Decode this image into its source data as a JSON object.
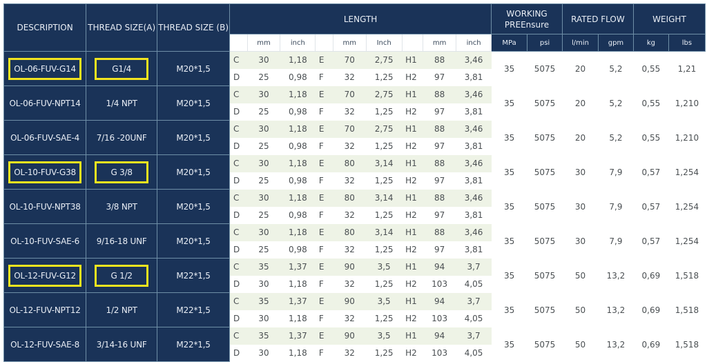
{
  "headers": {
    "description": "DESCRIPTION",
    "thread_a": "THREAD SIZE(A)",
    "thread_b": "THREAD SIZE (B)",
    "length": "LENGTH",
    "working_line1": "WORKING",
    "working_line2": "PREEnsure",
    "rated_flow": "RATED FLOW",
    "weight": "WEIGHT"
  },
  "units": {
    "u_mm1": "mm",
    "u_inch1": "inch",
    "u_mm2": "mm",
    "u_inch2": "Inch",
    "u_mm3": "mm",
    "u_inch3": "inch",
    "u_mpa": "MPa",
    "u_psi": "psi",
    "u_lmin": "l/min",
    "u_gpm": "gpm",
    "u_kg": "kg",
    "u_lbs": "lbs"
  },
  "rows": [
    {
      "description": "OL-06-FUV-G14",
      "thread_a": "G1/4",
      "thread_b": "M20*1,5",
      "highlight": true,
      "c_mm": "30",
      "c_inch": "1,18",
      "e_mm": "70",
      "e_inch": "2,75",
      "h1_mm": "88",
      "h1_inch": "3,46",
      "d_mm": "25",
      "d_inch": "0,98",
      "f_mm": "32",
      "f_inch": "1,25",
      "h2_mm": "97",
      "h2_inch": "3,81",
      "mpa": "35",
      "psi": "5075",
      "lmin": "20",
      "gpm": "5,2",
      "kg": "0,55",
      "lbs": "1,21"
    },
    {
      "description": "OL-06-FUV-NPT14",
      "thread_a": "1/4 NPT",
      "thread_b": "M20*1,5",
      "highlight": false,
      "c_mm": "30",
      "c_inch": "1,18",
      "e_mm": "70",
      "e_inch": "2,75",
      "h1_mm": "88",
      "h1_inch": "3,46",
      "d_mm": "25",
      "d_inch": "0,98",
      "f_mm": "32",
      "f_inch": "1,25",
      "h2_mm": "97",
      "h2_inch": "3,81",
      "mpa": "35",
      "psi": "5075",
      "lmin": "20",
      "gpm": "5,2",
      "kg": "0,55",
      "lbs": "1,210"
    },
    {
      "description": "OL-06-FUV-SAE-4",
      "thread_a": "7/16 -20UNF",
      "thread_b": "M20*1,5",
      "highlight": false,
      "c_mm": "30",
      "c_inch": "1,18",
      "e_mm": "70",
      "e_inch": "2,75",
      "h1_mm": "88",
      "h1_inch": "3,46",
      "d_mm": "25",
      "d_inch": "0,98",
      "f_mm": "32",
      "f_inch": "1,25",
      "h2_mm": "97",
      "h2_inch": "3,81",
      "mpa": "35",
      "psi": "5075",
      "lmin": "20",
      "gpm": "5,2",
      "kg": "0,55",
      "lbs": "1,210"
    },
    {
      "description": "OL-10-FUV-G38",
      "thread_a": "G 3/8",
      "thread_b": "M20*1,5",
      "highlight": true,
      "c_mm": "30",
      "c_inch": "1,18",
      "e_mm": "80",
      "e_inch": "3,14",
      "h1_mm": "88",
      "h1_inch": "3,46",
      "d_mm": "25",
      "d_inch": "0,98",
      "f_mm": "32",
      "f_inch": "1,25",
      "h2_mm": "97",
      "h2_inch": "3,81",
      "mpa": "35",
      "psi": "5075",
      "lmin": "30",
      "gpm": "7,9",
      "kg": "0,57",
      "lbs": "1,254"
    },
    {
      "description": "OL-10-FUV-NPT38",
      "thread_a": "3/8 NPT",
      "thread_b": "M20*1,5",
      "highlight": false,
      "c_mm": "30",
      "c_inch": "1,18",
      "e_mm": "80",
      "e_inch": "3,14",
      "h1_mm": "88",
      "h1_inch": "3,46",
      "d_mm": "25",
      "d_inch": "0,98",
      "f_mm": "32",
      "f_inch": "1,25",
      "h2_mm": "97",
      "h2_inch": "3,81",
      "mpa": "35",
      "psi": "5075",
      "lmin": "30",
      "gpm": "7,9",
      "kg": "0,57",
      "lbs": "1,254"
    },
    {
      "description": "OL-10-FUV-SAE-6",
      "thread_a": "9/16-18 UNF",
      "thread_b": "M20*1,5",
      "highlight": false,
      "c_mm": "30",
      "c_inch": "1,18",
      "e_mm": "80",
      "e_inch": "3,14",
      "h1_mm": "88",
      "h1_inch": "3,46",
      "d_mm": "25",
      "d_inch": "0,98",
      "f_mm": "32",
      "f_inch": "1,25",
      "h2_mm": "97",
      "h2_inch": "3,81",
      "mpa": "35",
      "psi": "5075",
      "lmin": "30",
      "gpm": "7,9",
      "kg": "0,57",
      "lbs": "1,254"
    },
    {
      "description": "OL-12-FUV-G12",
      "thread_a": "G 1/2",
      "thread_b": "M22*1,5",
      "highlight": true,
      "c_mm": "35",
      "c_inch": "1,37",
      "e_mm": "90",
      "e_inch": "3,5",
      "h1_mm": "94",
      "h1_inch": "3,7",
      "d_mm": "30",
      "d_inch": "1,18",
      "f_mm": "32",
      "f_inch": "1,25",
      "h2_mm": "103",
      "h2_inch": "4,05",
      "mpa": "35",
      "psi": "5075",
      "lmin": "50",
      "gpm": "13,2",
      "kg": "0,69",
      "lbs": "1,518"
    },
    {
      "description": "OL-12-FUV-NPT12",
      "thread_a": "1/2 NPT",
      "thread_b": "M22*1,5",
      "highlight": false,
      "c_mm": "35",
      "c_inch": "1,37",
      "e_mm": "90",
      "e_inch": "3,5",
      "h1_mm": "94",
      "h1_inch": "3,7",
      "d_mm": "30",
      "d_inch": "1,18",
      "f_mm": "32",
      "f_inch": "1,25",
      "h2_mm": "103",
      "h2_inch": "4,05",
      "mpa": "35",
      "psi": "5075",
      "lmin": "50",
      "gpm": "13,2",
      "kg": "0,69",
      "lbs": "1,518"
    },
    {
      "description": "OL-12-FUV-SAE-8",
      "thread_a": "3/14-16 UNF",
      "thread_b": "M22*1,5",
      "highlight": false,
      "c_mm": "35",
      "c_inch": "1,37",
      "e_mm": "90",
      "e_inch": "3,5",
      "h1_mm": "94",
      "h1_inch": "3,7",
      "d_mm": "30",
      "d_inch": "1,18",
      "f_mm": "32",
      "f_inch": "1,25",
      "h2_mm": "103",
      "h2_inch": "4,05",
      "mpa": "35",
      "psi": "5075",
      "lmin": "50",
      "gpm": "13,2",
      "kg": "0,69",
      "lbs": "1,518"
    }
  ],
  "row_labels": {
    "c": "C",
    "d": "D",
    "e": "E",
    "f": "F",
    "h1": "H1",
    "h2": "H2"
  },
  "colors": {
    "header_bg": "#1a3358",
    "row_shade": "#eef3e6",
    "highlight": "#f3e51f"
  }
}
